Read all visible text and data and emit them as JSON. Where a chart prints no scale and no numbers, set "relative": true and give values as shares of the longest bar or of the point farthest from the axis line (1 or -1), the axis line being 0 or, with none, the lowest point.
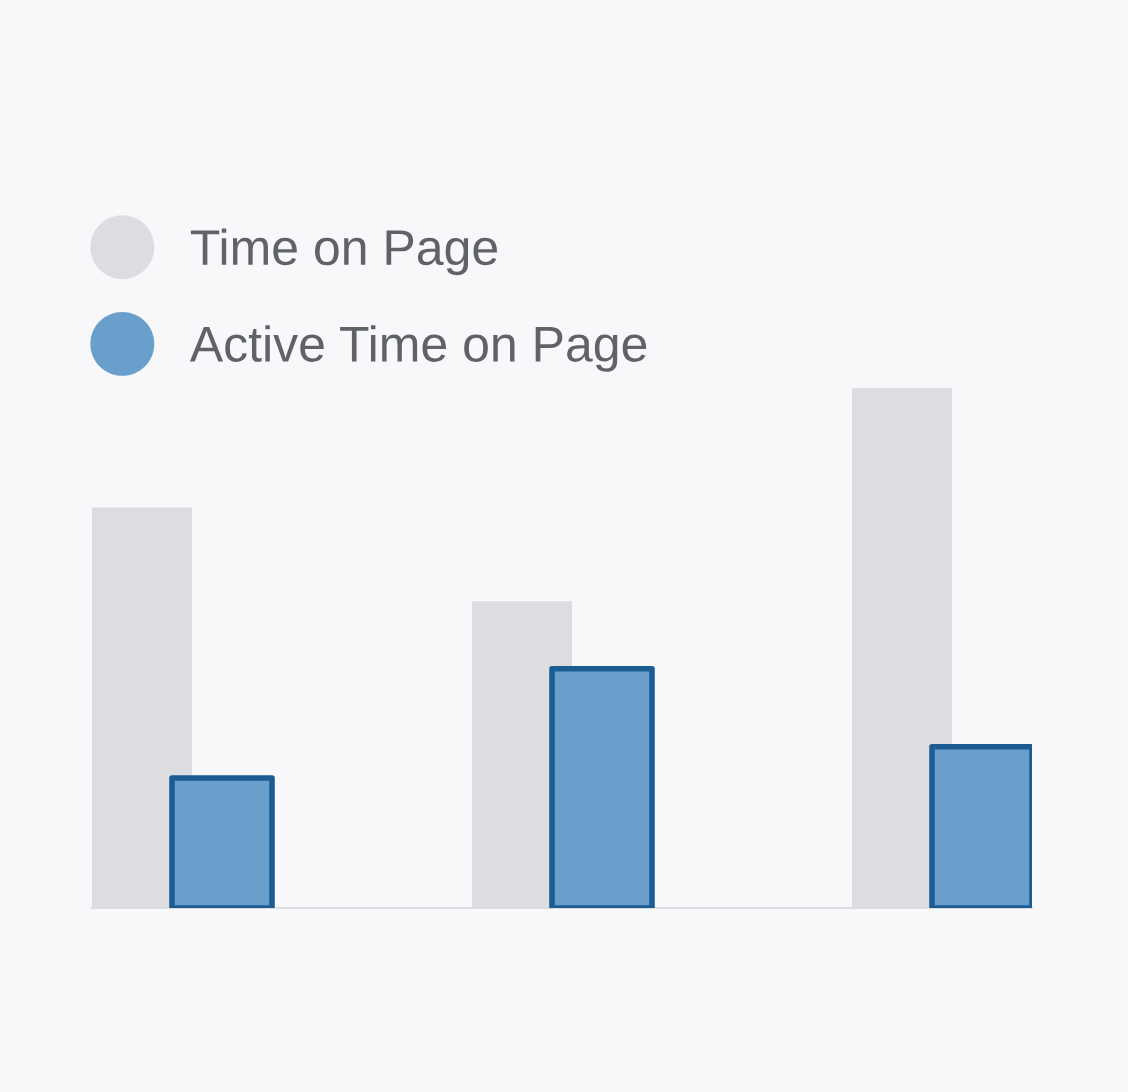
{
  "chart_data": {
    "type": "bar",
    "relative": true,
    "categories": [
      null,
      null,
      null
    ],
    "series": [
      {
        "name": "Time on Page",
        "color": "#dcdde0",
        "values": [
          0.77,
          0.59,
          1.0
        ]
      },
      {
        "name": "Active Time on Page",
        "color": "#6a9fcc",
        "values": [
          0.25,
          0.46,
          0.31
        ]
      }
    ],
    "legend": "top left",
    "tick_labels": false
  }
}
